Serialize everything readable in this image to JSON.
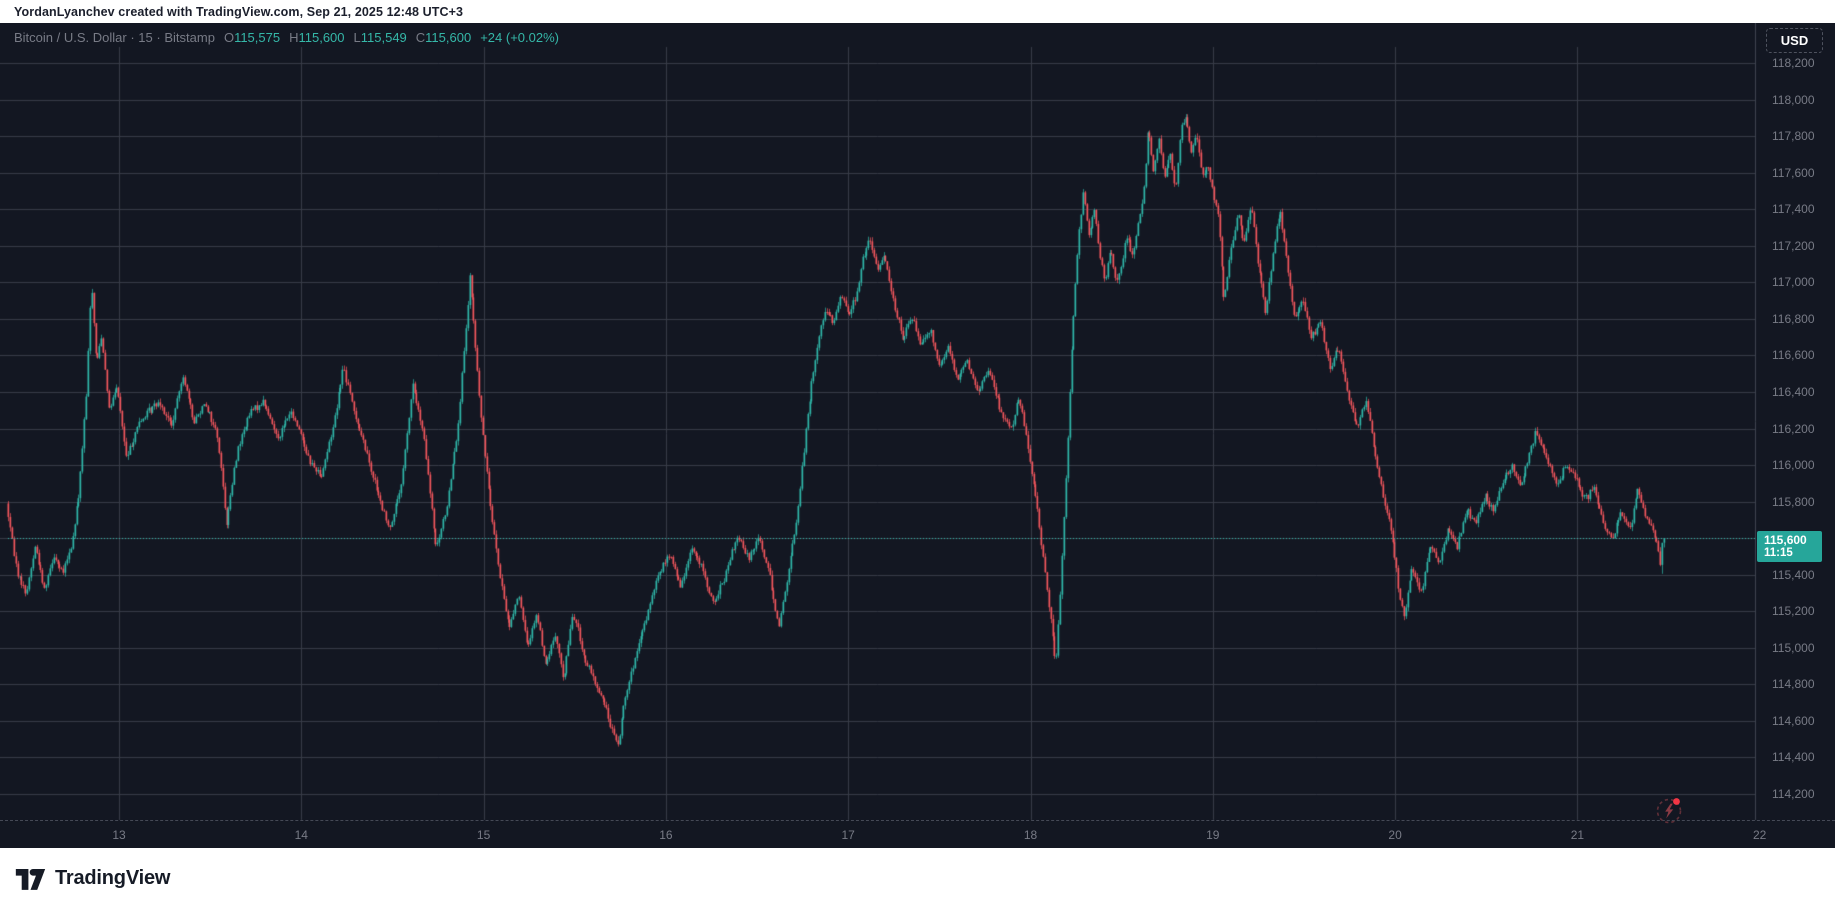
{
  "attribution": {
    "text": "YordanLyanchev created with TradingView.com, Sep 21, 2025 12:48 UTC+3"
  },
  "header": {
    "symbol": "Bitcoin / U.S. Dollar",
    "separator": "·",
    "interval": "15",
    "exchange": "Bitstamp",
    "ohlc": [
      {
        "label": "O",
        "value": "115,575"
      },
      {
        "label": "H",
        "value": "115,600"
      },
      {
        "label": "L",
        "value": "115,549"
      },
      {
        "label": "C",
        "value": "115,600"
      }
    ],
    "change": "+24 (+0.02%)"
  },
  "currency_button": {
    "label": "USD"
  },
  "last_price_label": {
    "price": "115,600",
    "time": "11:15"
  },
  "footer": {
    "brand": "TradingView"
  },
  "colors": {
    "background": "#131722",
    "grid": "#383c48",
    "axis_border": "#3f4450",
    "axis_text": "#787b86",
    "up": "#2fb8a9",
    "down": "#f4565d",
    "price_line": "#2fb8a9",
    "price_label_bg": "#26a69a",
    "header_text": "#787b86",
    "header_value": "#35b7a8"
  },
  "chart_data": {
    "type": "candlestick",
    "title": "Bitcoin / U.S. Dollar",
    "interval_minutes": 15,
    "exchange": "Bitstamp",
    "ohlc_current": {
      "open": 115575,
      "high": 115600,
      "low": 115549,
      "close": 115600,
      "change": 24,
      "change_pct": 0.02
    },
    "last_price": 115600,
    "last_time": "11:15",
    "ylim": [
      114100,
      118300
    ],
    "y_axis": {
      "ticks": [
        118200,
        118000,
        117800,
        117600,
        117400,
        117200,
        117000,
        116800,
        116600,
        116400,
        116200,
        116000,
        115800,
        115600,
        115400,
        115200,
        115000,
        114800,
        114600,
        114400,
        114200
      ],
      "labels": [
        "118,200",
        "118,000",
        "117,800",
        "117,600",
        "117,400",
        "117,200",
        "117,000",
        "116,800",
        "116,600",
        "116,400",
        "116,200",
        "116,000",
        "115,800",
        "115,600",
        "115,400",
        "115,200",
        "115,000",
        "114,800",
        "114,600",
        "114,400",
        "114,200"
      ]
    },
    "x_axis": {
      "unit": "day of September 2025",
      "ticks": [
        13,
        14,
        15,
        16,
        17,
        18,
        19,
        20,
        21,
        22
      ],
      "labels": [
        "13",
        "14",
        "15",
        "16",
        "17",
        "18",
        "19",
        "20",
        "21",
        "22"
      ]
    },
    "time_range_days": [
      12.392,
      21.479
    ],
    "price_path": [
      [
        12.392,
        115790
      ],
      [
        12.45,
        115420
      ],
      [
        12.5,
        115290
      ],
      [
        12.55,
        115560
      ],
      [
        12.6,
        115320
      ],
      [
        12.65,
        115510
      ],
      [
        12.7,
        115400
      ],
      [
        12.75,
        115560
      ],
      [
        12.79,
        115850
      ],
      [
        12.83,
        116380
      ],
      [
        12.857,
        117020
      ],
      [
        12.885,
        116550
      ],
      [
        12.915,
        116720
      ],
      [
        12.955,
        116300
      ],
      [
        13.0,
        116430
      ],
      [
        13.05,
        116030
      ],
      [
        13.11,
        116210
      ],
      [
        13.17,
        116290
      ],
      [
        13.23,
        116350
      ],
      [
        13.3,
        116210
      ],
      [
        13.36,
        116500
      ],
      [
        13.42,
        116230
      ],
      [
        13.48,
        116350
      ],
      [
        13.55,
        116160
      ],
      [
        13.6,
        115680
      ],
      [
        13.66,
        116090
      ],
      [
        13.73,
        116290
      ],
      [
        13.8,
        116350
      ],
      [
        13.88,
        116150
      ],
      [
        13.95,
        116290
      ],
      [
        14.0,
        116190
      ],
      [
        14.06,
        116010
      ],
      [
        14.12,
        115940
      ],
      [
        14.18,
        116190
      ],
      [
        14.24,
        116540
      ],
      [
        14.3,
        116290
      ],
      [
        14.37,
        116060
      ],
      [
        14.43,
        115840
      ],
      [
        14.49,
        115650
      ],
      [
        14.56,
        115890
      ],
      [
        14.62,
        116450
      ],
      [
        14.68,
        116160
      ],
      [
        14.75,
        115530
      ],
      [
        14.81,
        115790
      ],
      [
        14.87,
        116220
      ],
      [
        14.91,
        116700
      ],
      [
        14.935,
        117040
      ],
      [
        14.965,
        116640
      ],
      [
        15.0,
        116210
      ],
      [
        15.05,
        115770
      ],
      [
        15.1,
        115380
      ],
      [
        15.15,
        115110
      ],
      [
        15.2,
        115300
      ],
      [
        15.25,
        115000
      ],
      [
        15.3,
        115190
      ],
      [
        15.35,
        114900
      ],
      [
        15.4,
        115070
      ],
      [
        15.45,
        114830
      ],
      [
        15.5,
        115200
      ],
      [
        15.56,
        114950
      ],
      [
        15.62,
        114810
      ],
      [
        15.67,
        114700
      ],
      [
        15.72,
        114530
      ],
      [
        15.745,
        114460
      ],
      [
        15.79,
        114760
      ],
      [
        15.85,
        114970
      ],
      [
        15.91,
        115190
      ],
      [
        15.97,
        115410
      ],
      [
        16.03,
        115510
      ],
      [
        16.09,
        115330
      ],
      [
        16.15,
        115550
      ],
      [
        16.21,
        115430
      ],
      [
        16.27,
        115230
      ],
      [
        16.33,
        115380
      ],
      [
        16.4,
        115610
      ],
      [
        16.46,
        115490
      ],
      [
        16.52,
        115610
      ],
      [
        16.58,
        115390
      ],
      [
        16.63,
        115110
      ],
      [
        16.68,
        115410
      ],
      [
        16.73,
        115720
      ],
      [
        16.77,
        116120
      ],
      [
        16.81,
        116450
      ],
      [
        16.85,
        116720
      ],
      [
        16.89,
        116860
      ],
      [
        16.93,
        116760
      ],
      [
        16.97,
        116950
      ],
      [
        17.01,
        116820
      ],
      [
        17.05,
        116910
      ],
      [
        17.09,
        117130
      ],
      [
        17.13,
        117230
      ],
      [
        17.17,
        117060
      ],
      [
        17.21,
        117160
      ],
      [
        17.26,
        116890
      ],
      [
        17.31,
        116690
      ],
      [
        17.36,
        116810
      ],
      [
        17.41,
        116660
      ],
      [
        17.46,
        116750
      ],
      [
        17.51,
        116530
      ],
      [
        17.56,
        116650
      ],
      [
        17.61,
        116470
      ],
      [
        17.66,
        116580
      ],
      [
        17.72,
        116390
      ],
      [
        17.78,
        116530
      ],
      [
        17.84,
        116310
      ],
      [
        17.9,
        116200
      ],
      [
        17.95,
        116370
      ],
      [
        18.0,
        116060
      ],
      [
        18.04,
        115810
      ],
      [
        18.08,
        115490
      ],
      [
        18.12,
        115160
      ],
      [
        18.15,
        114900
      ],
      [
        18.175,
        115320
      ],
      [
        18.21,
        116050
      ],
      [
        18.24,
        116720
      ],
      [
        18.27,
        117210
      ],
      [
        18.3,
        117490
      ],
      [
        18.33,
        117260
      ],
      [
        18.36,
        117410
      ],
      [
        18.39,
        117130
      ],
      [
        18.42,
        117010
      ],
      [
        18.45,
        117190
      ],
      [
        18.48,
        116990
      ],
      [
        18.51,
        117110
      ],
      [
        18.54,
        117270
      ],
      [
        18.57,
        117130
      ],
      [
        18.6,
        117310
      ],
      [
        18.63,
        117490
      ],
      [
        18.655,
        117850
      ],
      [
        18.685,
        117610
      ],
      [
        18.715,
        117790
      ],
      [
        18.745,
        117560
      ],
      [
        18.775,
        117710
      ],
      [
        18.805,
        117490
      ],
      [
        18.835,
        117830
      ],
      [
        18.858,
        117930
      ],
      [
        18.89,
        117710
      ],
      [
        18.92,
        117830
      ],
      [
        18.95,
        117570
      ],
      [
        18.98,
        117660
      ],
      [
        19.01,
        117490
      ],
      [
        19.04,
        117350
      ],
      [
        19.07,
        116890
      ],
      [
        19.11,
        117190
      ],
      [
        19.15,
        117390
      ],
      [
        19.18,
        117210
      ],
      [
        19.22,
        117430
      ],
      [
        19.26,
        117090
      ],
      [
        19.3,
        116830
      ],
      [
        19.34,
        117160
      ],
      [
        19.38,
        117400
      ],
      [
        19.42,
        117060
      ],
      [
        19.46,
        116790
      ],
      [
        19.5,
        116910
      ],
      [
        19.55,
        116690
      ],
      [
        19.6,
        116790
      ],
      [
        19.65,
        116530
      ],
      [
        19.7,
        116650
      ],
      [
        19.75,
        116390
      ],
      [
        19.8,
        116210
      ],
      [
        19.85,
        116360
      ],
      [
        19.9,
        116060
      ],
      [
        19.95,
        115810
      ],
      [
        20.0,
        115570
      ],
      [
        20.03,
        115310
      ],
      [
        20.06,
        115160
      ],
      [
        20.1,
        115430
      ],
      [
        20.15,
        115290
      ],
      [
        20.2,
        115560
      ],
      [
        20.25,
        115450
      ],
      [
        20.3,
        115660
      ],
      [
        20.35,
        115550
      ],
      [
        20.4,
        115760
      ],
      [
        20.45,
        115670
      ],
      [
        20.5,
        115830
      ],
      [
        20.55,
        115750
      ],
      [
        20.6,
        115910
      ],
      [
        20.65,
        116000
      ],
      [
        20.7,
        115880
      ],
      [
        20.75,
        116070
      ],
      [
        20.78,
        116190
      ],
      [
        20.82,
        116090
      ],
      [
        20.86,
        115990
      ],
      [
        20.9,
        115890
      ],
      [
        20.95,
        116010
      ],
      [
        21.0,
        115930
      ],
      [
        21.05,
        115810
      ],
      [
        21.1,
        115880
      ],
      [
        21.15,
        115690
      ],
      [
        21.2,
        115570
      ],
      [
        21.25,
        115750
      ],
      [
        21.3,
        115650
      ],
      [
        21.34,
        115870
      ],
      [
        21.38,
        115730
      ],
      [
        21.42,
        115650
      ],
      [
        21.45,
        115570
      ],
      [
        21.468,
        115420
      ],
      [
        21.479,
        115600
      ]
    ]
  }
}
